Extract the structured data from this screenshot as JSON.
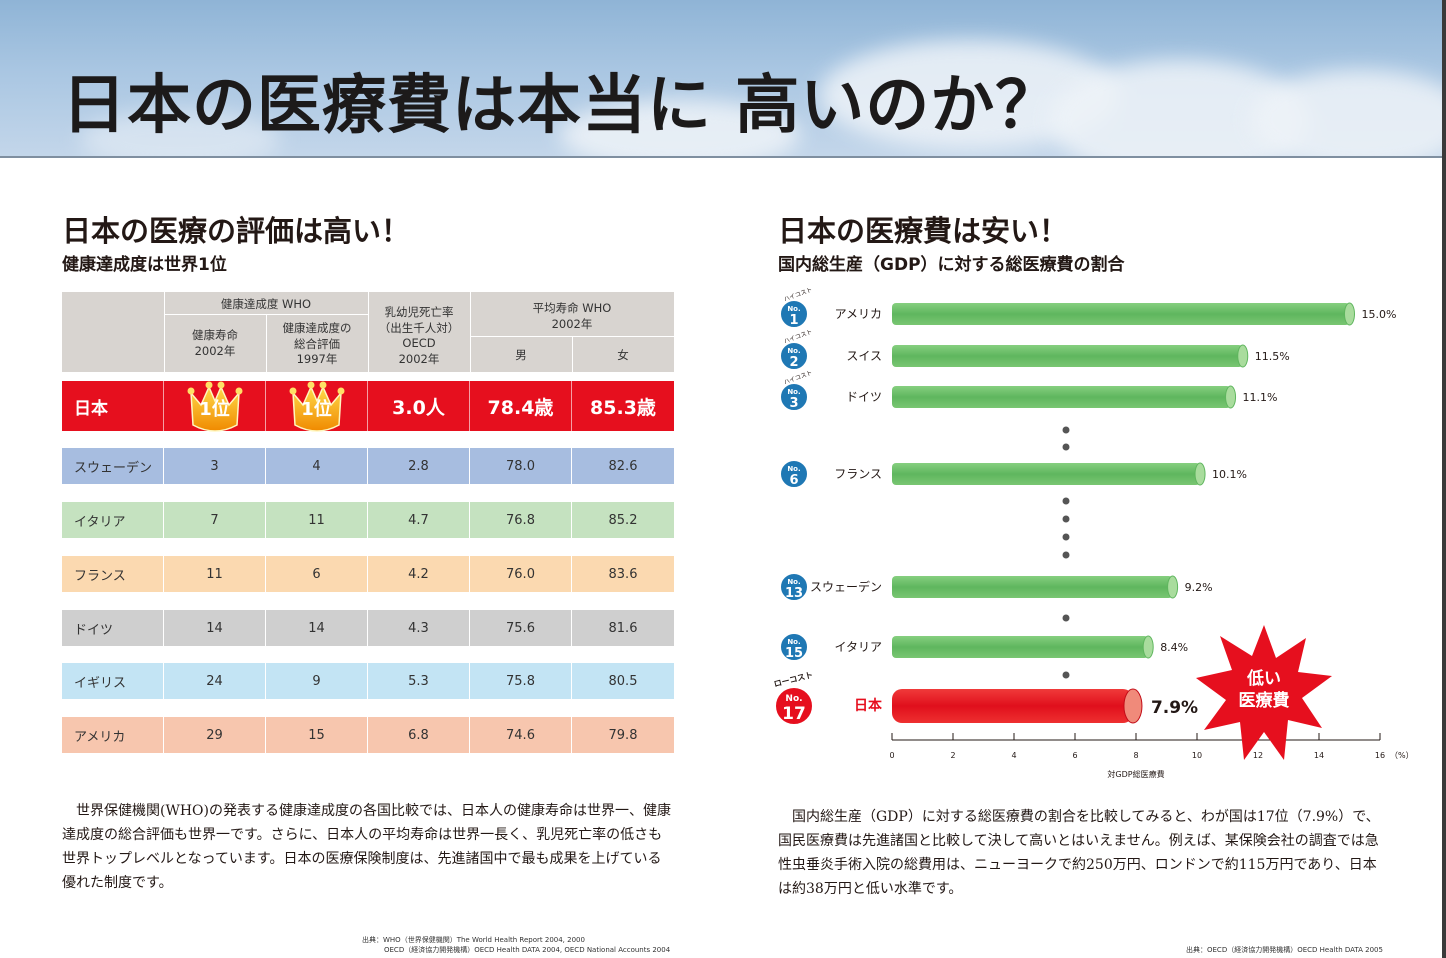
{
  "page_title": "日本の医療費は本当に 高いのか？",
  "left": {
    "title": "日本の医療の評価は高い！",
    "subtitle": "健康達成度は世界1位",
    "table": {
      "header": {
        "group_who": "健康達成度 WHO",
        "col_healthy_life": "健康寿命\n2002年",
        "col_overall": "健康達成度の\n総合評価\n1997年",
        "col_infant": "乳幼児死亡率\n（出生千人対）\nOECD\n2002年",
        "group_life": "平均寿命 WHO\n2002年",
        "col_male": "男",
        "col_female": "女"
      },
      "japan": {
        "name": "日本",
        "healthy_life": "1位",
        "overall": "1位",
        "infant": "3.0人",
        "male": "78.4歳",
        "female": "85.3歳"
      },
      "rows": [
        {
          "name": "スウェーデン",
          "healthy_life": "3",
          "overall": "4",
          "infant": "2.8",
          "male": "78.0",
          "female": "82.6",
          "color": "#a7bde0"
        },
        {
          "name": "イタリア",
          "healthy_life": "7",
          "overall": "11",
          "infant": "4.7",
          "male": "76.8",
          "female": "85.2",
          "color": "#c5e2c0"
        },
        {
          "name": "フランス",
          "healthy_life": "11",
          "overall": "6",
          "infant": "4.2",
          "male": "76.0",
          "female": "83.6",
          "color": "#fbd9b0"
        },
        {
          "name": "ドイツ",
          "healthy_life": "14",
          "overall": "14",
          "infant": "4.3",
          "male": "75.6",
          "female": "81.6",
          "color": "#cfcfcf"
        },
        {
          "name": "イギリス",
          "healthy_life": "24",
          "overall": "9",
          "infant": "5.3",
          "male": "75.8",
          "female": "80.5",
          "color": "#c3e4f4"
        },
        {
          "name": "アメリカ",
          "healthy_life": "29",
          "overall": "15",
          "infant": "6.8",
          "male": "74.6",
          "female": "79.8",
          "color": "#f7c6ae"
        }
      ]
    },
    "paragraph": "　世界保健機関(WHO)の発表する健康達成度の各国比較では、日本人の健康寿命は世界一、健康達成度の総合評価も世界一です。さらに、日本人の平均寿命は世界一長く、乳児死亡率の低さも世界トップレベルとなっています。日本の医療保険制度は、先進諸国中で最も成果を上げている優れた制度です。",
    "source_line1": "出典：WHO（世界保健機関）The World Health Report 2004, 2000",
    "source_line2": "OECD（経済協力開発機構）OECD Health DATA 2004, OECD National Accounts 2004"
  },
  "right": {
    "title": "日本の医療費は安い！",
    "subtitle": "国内総生産（GDP）に対する総医療費の割合",
    "high_cost_tag": "ハイコスト",
    "low_cost_tag": "ローコスト",
    "rank_prefix": "No.",
    "burst_line1": "低い",
    "burst_line2": "医療費",
    "paragraph": "　国内総生産（GDP）に対する総医療費の割合を比較してみると、わが国は17位（7.9%）で、国民医療費は先進諸国と比較して決して高いとはいえません。例えば、某保険会社の調査では急性虫垂炎手術入院の総費用は、ニューヨークで約250万円、ロンドンで約115万円であり、日本は約38万円と低い水準です。",
    "source": "出典：OECD（経済協力開発機構）OECD Health DATA 2005"
  },
  "chart_data": {
    "type": "bar",
    "orientation": "horizontal",
    "title": "日本の医療費は安い！",
    "subtitle": "国内総生産（GDP）に対する総医療費の割合",
    "xlabel": "",
    "unit_label": "対GDP総医療費",
    "x_unit": "（%）",
    "xlim": [
      0,
      16
    ],
    "xticks": [
      0,
      2,
      4,
      6,
      8,
      10,
      12,
      14,
      16
    ],
    "categories": [
      "アメリカ",
      "スイス",
      "ドイツ",
      "フランス",
      "スウェーデン",
      "イタリア",
      "日本"
    ],
    "ranks": [
      1,
      2,
      3,
      6,
      13,
      15,
      17
    ],
    "values": [
      15.0,
      11.5,
      11.1,
      10.1,
      9.2,
      8.4,
      7.9
    ],
    "value_labels": [
      "15.0%",
      "11.5%",
      "11.1%",
      "10.1%",
      "9.2%",
      "8.4%",
      "7.9%"
    ],
    "highlight": "日本",
    "colors": {
      "bar": "#6cc070",
      "bar_end": "#a9dc9d",
      "highlight": "#e60f1e",
      "highlight_end": "#f08a7a",
      "badge": "#1f78b4"
    }
  }
}
